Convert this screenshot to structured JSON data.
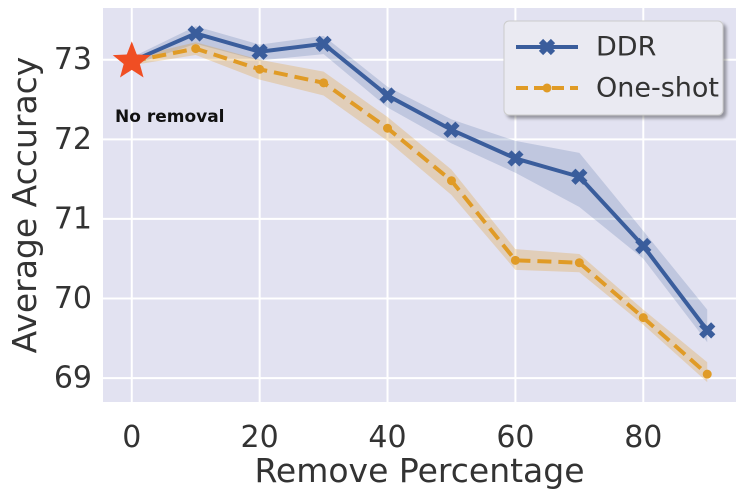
{
  "chart_data": {
    "type": "line",
    "title": "",
    "xlabel": "Remove Percentage",
    "ylabel": "Average Accuracy",
    "xlim": [
      -4.5,
      94.5
    ],
    "ylim": [
      68.7,
      73.65
    ],
    "xticks": [
      0,
      20,
      40,
      60,
      80
    ],
    "yticks": [
      69,
      70,
      71,
      72,
      73
    ],
    "grid": true,
    "legend_position": "top-right",
    "x": [
      0,
      10,
      20,
      30,
      40,
      50,
      60,
      70,
      80,
      90
    ],
    "series": [
      {
        "name": "DDR",
        "color": "#3a5d9c",
        "marker": "x",
        "linestyle": "solid",
        "values": [
          72.98,
          73.33,
          73.1,
          73.2,
          72.55,
          72.12,
          71.76,
          71.53,
          70.66,
          69.6
        ],
        "band_low": [
          72.93,
          73.2,
          72.99,
          73.07,
          72.4,
          71.95,
          71.58,
          71.15,
          70.5,
          69.45
        ],
        "band_high": [
          73.03,
          73.42,
          73.19,
          73.3,
          72.66,
          72.25,
          71.98,
          71.83,
          70.85,
          69.86
        ]
      },
      {
        "name": "One-shot",
        "color": "#e09b26",
        "marker": "o",
        "linestyle": "dashed",
        "values": [
          72.98,
          73.14,
          72.88,
          72.71,
          72.14,
          71.48,
          70.48,
          70.45,
          69.76,
          69.05
        ],
        "band_low": [
          72.93,
          73.06,
          72.75,
          72.55,
          71.98,
          71.3,
          70.36,
          70.33,
          69.67,
          68.95
        ],
        "band_high": [
          73.03,
          73.22,
          73.0,
          72.85,
          72.28,
          71.62,
          70.62,
          70.56,
          69.86,
          69.2
        ]
      }
    ],
    "baseline": {
      "x": 0,
      "y": 72.98,
      "marker": "star",
      "color": "#f04e23",
      "label": "No removal"
    }
  },
  "colors": {
    "plot_background": "#e2e2f1",
    "grid": "#ffffff",
    "legend_background": "#eaeaf2"
  }
}
